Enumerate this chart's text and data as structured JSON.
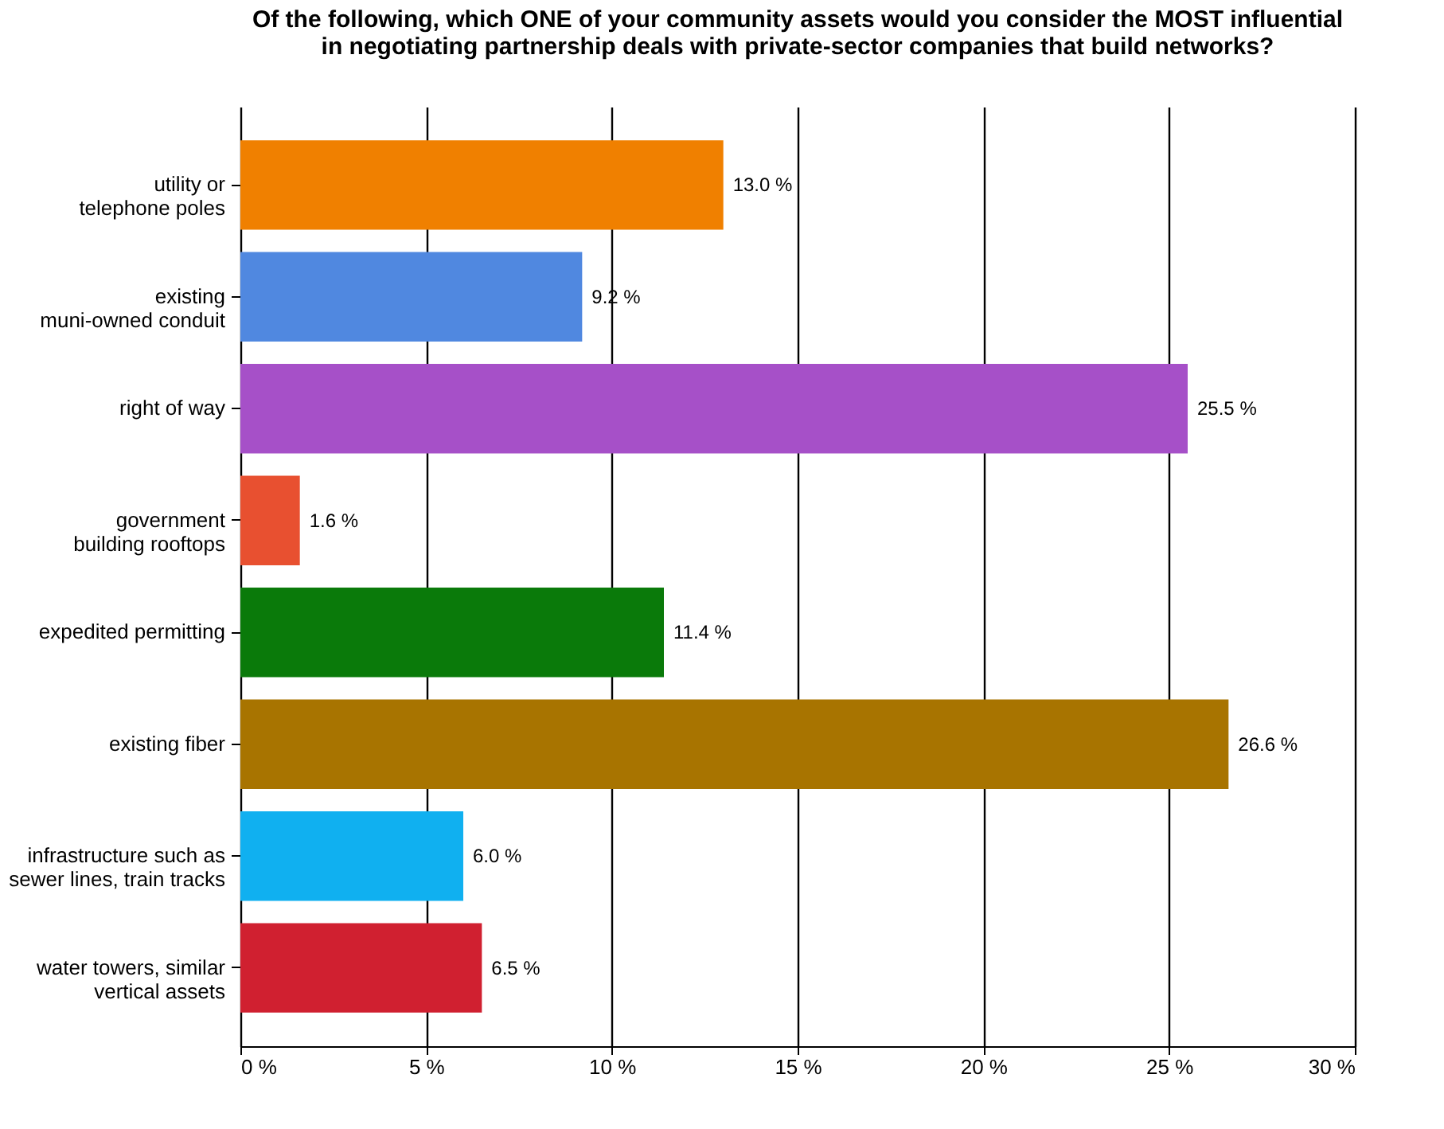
{
  "chart_data": {
    "type": "bar",
    "orientation": "horizontal",
    "title": [
      "Of the following, which ONE of your community assets would you consider the MOST influential",
      "in negotiating partnership deals with private-sector companies that build networks?"
    ],
    "categories": [
      "utility or\ntelephone poles",
      "existing\nmuni-owned conduit",
      "right of way",
      "government\nbuilding rooftops",
      "expedited permitting",
      "existing fiber",
      "infrastructure such as\nsewer lines, train tracks",
      "water towers, similar\nvertical assets"
    ],
    "values": [
      13.0,
      9.2,
      25.5,
      1.6,
      11.4,
      26.6,
      6.0,
      6.5
    ],
    "colors": [
      "#f08000",
      "#5088e0",
      "#a650c8",
      "#e85030",
      "#0a7a0a",
      "#a87400",
      "#10b0f0",
      "#d02030"
    ],
    "value_labels": [
      "13.0 %",
      "9.2 %",
      "25.5 %",
      "1.6 %",
      "11.4 %",
      "26.6 %",
      "6.0 %",
      "6.5 %"
    ],
    "xlim": [
      0,
      30
    ],
    "xticks": [
      {
        "value": 0,
        "label": "0 %"
      },
      {
        "value": 5,
        "label": "5 %"
      },
      {
        "value": 10,
        "label": "10 %"
      },
      {
        "value": 15,
        "label": "15 %"
      },
      {
        "value": 20,
        "label": "20 %"
      },
      {
        "value": 25,
        "label": "25 %"
      },
      {
        "value": 30,
        "label": "30 %"
      }
    ],
    "grid": "x"
  }
}
